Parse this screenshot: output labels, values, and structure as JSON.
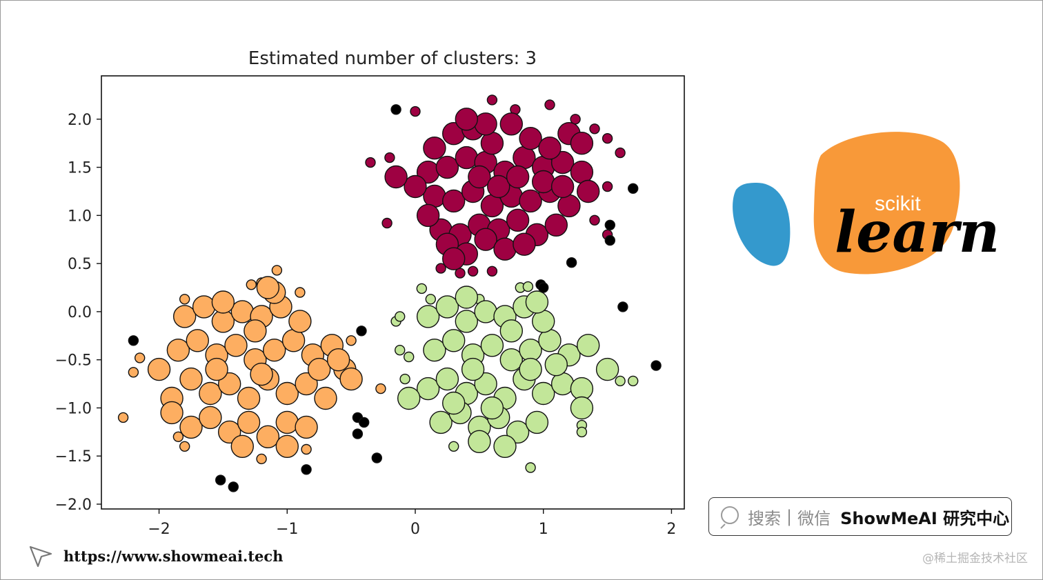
{
  "chart_data": {
    "type": "scatter",
    "title": "Estimated number of clusters: 3",
    "xlabel": "",
    "ylabel": "",
    "xlim": [
      -2.45,
      2.1
    ],
    "ylim": [
      -2.05,
      2.45
    ],
    "xticks": [
      -2,
      -1,
      0,
      1,
      2
    ],
    "xtick_labels": [
      "−2",
      "−1",
      "0",
      "1",
      "2"
    ],
    "yticks": [
      2.0,
      1.5,
      1.0,
      0.5,
      0.0,
      -0.5,
      -1.0,
      -1.5,
      -2.0
    ],
    "ytick_labels": [
      "2.0",
      "1.5",
      "1.0",
      "0.5",
      "0.0",
      "−0.5",
      "−1.0",
      "−1.5",
      "−2.0"
    ],
    "grid": false,
    "series": [
      {
        "color": "#9e0142",
        "core_points": [
          [
            0.1,
            1.45
          ],
          [
            0.25,
            1.5
          ],
          [
            0.4,
            1.6
          ],
          [
            0.55,
            1.55
          ],
          [
            0.7,
            1.45
          ],
          [
            0.85,
            1.6
          ],
          [
            1.0,
            1.5
          ],
          [
            1.15,
            1.55
          ],
          [
            1.3,
            1.45
          ],
          [
            0.15,
            1.2
          ],
          [
            0.3,
            1.15
          ],
          [
            0.45,
            1.25
          ],
          [
            0.6,
            1.1
          ],
          [
            0.75,
            1.2
          ],
          [
            0.9,
            1.15
          ],
          [
            1.05,
            1.25
          ],
          [
            1.2,
            1.1
          ],
          [
            1.35,
            1.25
          ],
          [
            0.2,
            0.85
          ],
          [
            0.35,
            0.8
          ],
          [
            0.5,
            0.9
          ],
          [
            0.65,
            0.85
          ],
          [
            0.8,
            0.95
          ],
          [
            0.95,
            0.8
          ],
          [
            1.1,
            0.9
          ],
          [
            0.15,
            1.7
          ],
          [
            0.3,
            1.85
          ],
          [
            0.45,
            1.9
          ],
          [
            0.6,
            1.75
          ],
          [
            0.75,
            1.95
          ],
          [
            0.9,
            1.8
          ],
          [
            1.05,
            1.7
          ],
          [
            1.2,
            1.85
          ],
          [
            1.3,
            1.75
          ],
          [
            0.0,
            1.3
          ],
          [
            -0.15,
            1.4
          ],
          [
            0.1,
            1.0
          ],
          [
            0.25,
            0.7
          ],
          [
            0.4,
            0.6
          ],
          [
            0.55,
            0.75
          ],
          [
            0.7,
            0.65
          ],
          [
            0.85,
            0.7
          ],
          [
            0.3,
            0.55
          ],
          [
            0.5,
            1.4
          ],
          [
            0.65,
            1.3
          ],
          [
            1.0,
            1.35
          ],
          [
            0.55,
            1.95
          ],
          [
            0.4,
            2.0
          ],
          [
            0.8,
            1.4
          ],
          [
            1.15,
            1.3
          ]
        ],
        "border_points": [
          [
            -0.35,
            1.55
          ],
          [
            -0.2,
            1.6
          ],
          [
            -0.22,
            0.92
          ],
          [
            0.0,
            2.08
          ],
          [
            0.6,
            2.2
          ],
          [
            0.78,
            2.1
          ],
          [
            1.05,
            2.15
          ],
          [
            1.25,
            2.0
          ],
          [
            1.4,
            1.9
          ],
          [
            1.5,
            1.8
          ],
          [
            1.6,
            1.65
          ],
          [
            1.5,
            1.3
          ],
          [
            1.4,
            0.95
          ],
          [
            1.5,
            0.8
          ],
          [
            0.45,
            0.42
          ],
          [
            0.35,
            0.4
          ],
          [
            0.2,
            0.45
          ],
          [
            0.6,
            0.42
          ]
        ],
        "point_names": []
      },
      {
        "color": "#fdae61",
        "core_points": [
          [
            -1.9,
            -0.9
          ],
          [
            -1.75,
            -0.7
          ],
          [
            -1.6,
            -0.85
          ],
          [
            -1.45,
            -0.75
          ],
          [
            -1.3,
            -0.9
          ],
          [
            -1.15,
            -0.7
          ],
          [
            -1.0,
            -0.85
          ],
          [
            -0.85,
            -0.75
          ],
          [
            -0.7,
            -0.9
          ],
          [
            -1.85,
            -0.4
          ],
          [
            -1.7,
            -0.3
          ],
          [
            -1.55,
            -0.45
          ],
          [
            -1.4,
            -0.35
          ],
          [
            -1.25,
            -0.5
          ],
          [
            -1.1,
            -0.4
          ],
          [
            -0.95,
            -0.3
          ],
          [
            -0.8,
            -0.45
          ],
          [
            -0.65,
            -0.35
          ],
          [
            -1.8,
            -0.05
          ],
          [
            -1.65,
            0.05
          ],
          [
            -1.5,
            -0.1
          ],
          [
            -1.35,
            0.0
          ],
          [
            -1.2,
            -0.05
          ],
          [
            -1.05,
            0.05
          ],
          [
            -0.9,
            -0.1
          ],
          [
            -1.75,
            -1.2
          ],
          [
            -1.6,
            -1.1
          ],
          [
            -1.45,
            -1.25
          ],
          [
            -1.3,
            -1.15
          ],
          [
            -1.15,
            -1.3
          ],
          [
            -1.0,
            -1.15
          ],
          [
            -0.85,
            -1.2
          ],
          [
            -1.9,
            -1.05
          ],
          [
            -0.55,
            -0.6
          ],
          [
            -0.5,
            -0.7
          ],
          [
            -1.55,
            -0.6
          ],
          [
            -1.2,
            -0.65
          ],
          [
            -0.75,
            -0.6
          ],
          [
            -1.35,
            -1.4
          ],
          [
            -1.0,
            -1.4
          ],
          [
            -1.5,
            0.1
          ],
          [
            -1.1,
            0.2
          ],
          [
            -1.15,
            0.25
          ],
          [
            -2.0,
            -0.6
          ],
          [
            -1.25,
            -0.2
          ],
          [
            -0.6,
            -0.5
          ]
        ],
        "border_points": [
          [
            -2.28,
            -1.1
          ],
          [
            -2.2,
            -0.63
          ],
          [
            -2.15,
            -0.48
          ],
          [
            -1.8,
            0.13
          ],
          [
            -1.28,
            0.28
          ],
          [
            -1.2,
            0.3
          ],
          [
            -1.08,
            0.43
          ],
          [
            -0.9,
            0.2
          ],
          [
            -0.5,
            -0.3
          ],
          [
            -0.27,
            -0.8
          ],
          [
            -0.85,
            -1.43
          ],
          [
            -1.2,
            -1.53
          ],
          [
            -1.8,
            -1.4
          ],
          [
            -1.85,
            -1.3
          ]
        ],
        "point_names": []
      },
      {
        "color": "#c2e699",
        "core_points": [
          [
            0.1,
            -0.8
          ],
          [
            0.25,
            -0.7
          ],
          [
            0.4,
            -0.85
          ],
          [
            0.55,
            -0.75
          ],
          [
            0.7,
            -0.9
          ],
          [
            0.85,
            -0.7
          ],
          [
            1.0,
            -0.85
          ],
          [
            1.15,
            -0.75
          ],
          [
            1.3,
            -0.8
          ],
          [
            0.15,
            -0.4
          ],
          [
            0.3,
            -0.3
          ],
          [
            0.45,
            -0.45
          ],
          [
            0.6,
            -0.35
          ],
          [
            0.75,
            -0.5
          ],
          [
            0.9,
            -0.4
          ],
          [
            1.05,
            -0.3
          ],
          [
            1.2,
            -0.45
          ],
          [
            1.35,
            -0.35
          ],
          [
            0.1,
            -0.05
          ],
          [
            0.25,
            0.05
          ],
          [
            0.4,
            -0.1
          ],
          [
            0.55,
            0.0
          ],
          [
            0.7,
            -0.05
          ],
          [
            0.85,
            0.05
          ],
          [
            1.0,
            -0.1
          ],
          [
            0.2,
            -1.15
          ],
          [
            0.35,
            -1.05
          ],
          [
            0.5,
            -1.2
          ],
          [
            0.65,
            -1.1
          ],
          [
            0.8,
            -1.25
          ],
          [
            0.95,
            -1.15
          ],
          [
            0.7,
            -1.4
          ],
          [
            0.5,
            -1.35
          ],
          [
            -0.05,
            -0.9
          ],
          [
            1.5,
            -0.6
          ],
          [
            1.3,
            -1.0
          ],
          [
            0.9,
            -0.6
          ],
          [
            0.45,
            -0.6
          ],
          [
            0.75,
            -0.2
          ],
          [
            1.1,
            -0.55
          ],
          [
            0.3,
            -0.95
          ],
          [
            0.6,
            -1.0
          ],
          [
            0.4,
            0.15
          ],
          [
            0.95,
            0.1
          ]
        ],
        "border_points": [
          [
            0.05,
            0.24
          ],
          [
            0.12,
            0.13
          ],
          [
            -0.15,
            -0.1
          ],
          [
            -0.12,
            -0.05
          ],
          [
            -0.12,
            -0.4
          ],
          [
            -0.05,
            -0.47
          ],
          [
            -0.08,
            -0.7
          ],
          [
            0.3,
            -1.4
          ],
          [
            0.9,
            -1.62
          ],
          [
            1.3,
            -1.18
          ],
          [
            1.3,
            -1.25
          ],
          [
            1.6,
            -0.72
          ],
          [
            1.7,
            -0.72
          ],
          [
            0.82,
            0.25
          ],
          [
            0.88,
            0.26
          ],
          [
            0.5,
            0.13
          ]
        ],
        "point_names": []
      },
      {
        "color": "#000000",
        "noise": true,
        "points": [
          [
            -2.2,
            -0.3
          ],
          [
            -0.42,
            -0.2
          ],
          [
            -1.52,
            -1.75
          ],
          [
            -1.42,
            -1.82
          ],
          [
            -0.85,
            -1.64
          ],
          [
            -0.45,
            -1.1
          ],
          [
            -0.4,
            -1.15
          ],
          [
            -0.45,
            -1.27
          ],
          [
            -0.3,
            -1.52
          ],
          [
            -0.15,
            2.1
          ],
          [
            0.98,
            0.28
          ],
          [
            1.0,
            0.25
          ],
          [
            1.22,
            0.51
          ],
          [
            1.52,
            0.74
          ],
          [
            1.52,
            0.9
          ],
          [
            1.62,
            0.05
          ],
          [
            1.7,
            1.28
          ],
          [
            1.88,
            -0.56
          ]
        ]
      }
    ]
  },
  "logo": {
    "small_word": "scikit",
    "big_word": "learn",
    "colors": {
      "blue": "#3499cd",
      "orange": "#f89939",
      "ink": "#010101"
    }
  },
  "search": {
    "hint": "搜索",
    "separator": "|",
    "wechat": "微信",
    "brand": "ShowMeAI 研究中心"
  },
  "footer": {
    "url": "https://www.showmeai.tech",
    "credit": "@稀土掘金技术社区"
  }
}
